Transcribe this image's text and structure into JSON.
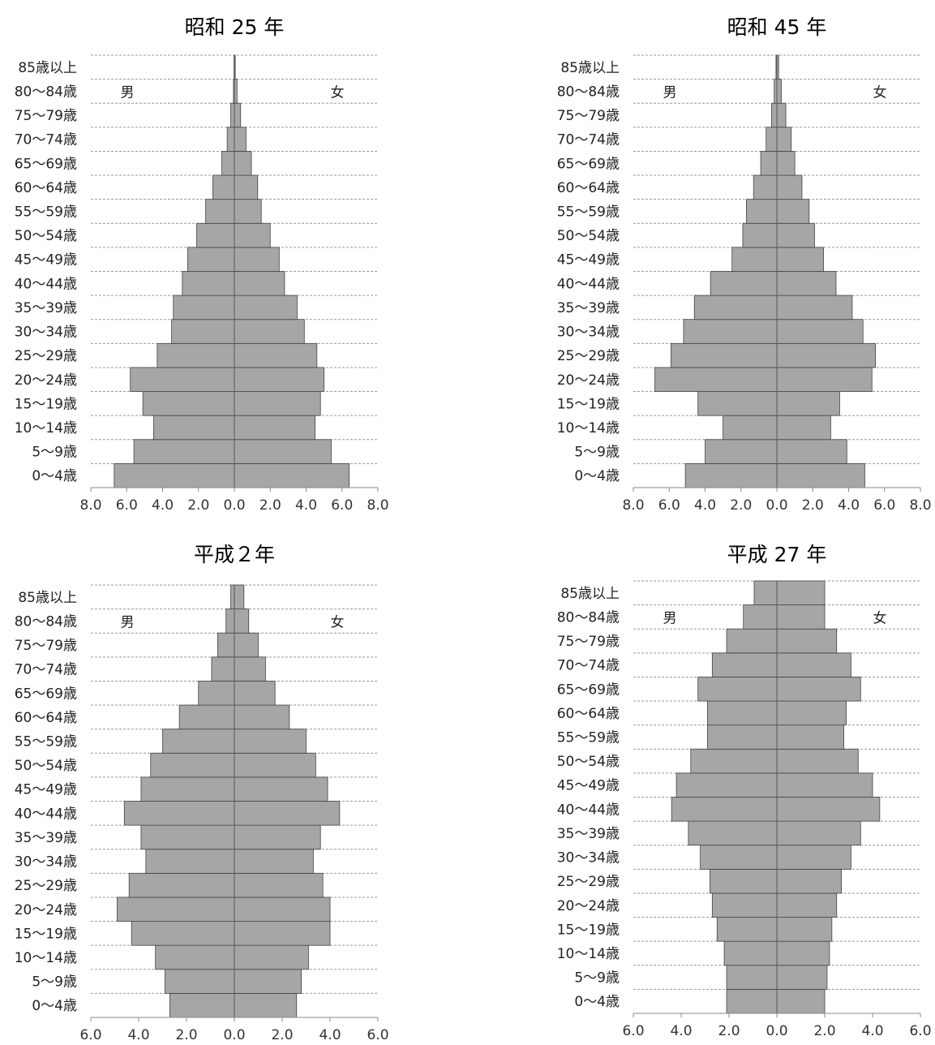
{
  "chart_data": [
    {
      "type": "bar",
      "title": "昭和 25 年",
      "categories": [
        "0～4歳",
        "5～9歳",
        "10～14歳",
        "15～19歳",
        "20～24歳",
        "25～29歳",
        "30～34歳",
        "35～39歳",
        "40～44歳",
        "45～49歳",
        "50～54歳",
        "55～59歳",
        "60～64歳",
        "65～69歳",
        "70～74歳",
        "75～79歳",
        "80～84歳",
        "85歳以上"
      ],
      "series": [
        {
          "name": "男",
          "values": [
            6.7,
            5.6,
            4.5,
            5.1,
            5.8,
            4.3,
            3.5,
            3.4,
            2.9,
            2.6,
            2.1,
            1.6,
            1.2,
            0.7,
            0.4,
            0.2,
            0.05,
            0.02
          ]
        },
        {
          "name": "女",
          "values": [
            6.4,
            5.4,
            4.5,
            4.8,
            5.0,
            4.6,
            3.9,
            3.5,
            2.8,
            2.5,
            2.0,
            1.5,
            1.3,
            0.95,
            0.65,
            0.35,
            0.15,
            0.05
          ]
        }
      ],
      "xlim": [
        -8,
        8
      ],
      "ticks": [
        "8.0",
        "6.0",
        "4.0",
        "2.0",
        "0.0",
        "2.0",
        "4.0",
        "6.0",
        "8.0"
      ],
      "male_label": "男",
      "female_label": "女"
    },
    {
      "type": "bar",
      "title": "昭和 45 年",
      "categories": [
        "0～4歳",
        "5～9歳",
        "10～14歳",
        "15～19歳",
        "20～24歳",
        "25～29歳",
        "30～34歳",
        "35～39歳",
        "40～44歳",
        "45～49歳",
        "50～54歳",
        "55～59歳",
        "60～64歳",
        "65～69歳",
        "70～74歳",
        "75～79歳",
        "80～84歳",
        "85歳以上"
      ],
      "series": [
        {
          "name": "男",
          "values": [
            5.1,
            4.0,
            3.0,
            4.4,
            6.8,
            5.9,
            5.2,
            4.6,
            3.7,
            2.5,
            1.9,
            1.7,
            1.3,
            0.9,
            0.6,
            0.3,
            0.15,
            0.05
          ]
        },
        {
          "name": "女",
          "values": [
            4.9,
            3.9,
            3.0,
            3.5,
            5.3,
            5.5,
            4.8,
            4.2,
            3.3,
            2.6,
            2.1,
            1.8,
            1.4,
            1.0,
            0.8,
            0.5,
            0.25,
            0.1
          ]
        }
      ],
      "xlim": [
        -8,
        8
      ],
      "ticks": [
        "8.0",
        "6.0",
        "4.0",
        "2.0",
        "0.0",
        "2.0",
        "4.0",
        "6.0",
        "8.0"
      ],
      "male_label": "男",
      "female_label": "女"
    },
    {
      "type": "bar",
      "title": "平成２年",
      "categories": [
        "0～4歳",
        "5～9歳",
        "10～14歳",
        "15～19歳",
        "20～24歳",
        "25～29歳",
        "30～34歳",
        "35～39歳",
        "40～44歳",
        "45～49歳",
        "50～54歳",
        "55～59歳",
        "60～64歳",
        "65～69歳",
        "70～74歳",
        "75～79歳",
        "80～84歳",
        "85歳以上"
      ],
      "series": [
        {
          "name": "男",
          "values": [
            2.7,
            2.9,
            3.3,
            4.3,
            4.9,
            4.4,
            3.7,
            3.9,
            4.6,
            3.9,
            3.5,
            3.0,
            2.3,
            1.5,
            0.95,
            0.7,
            0.35,
            0.15
          ]
        },
        {
          "name": "女",
          "values": [
            2.6,
            2.8,
            3.1,
            4.0,
            4.0,
            3.7,
            3.3,
            3.6,
            4.4,
            3.9,
            3.4,
            3.0,
            2.3,
            1.7,
            1.3,
            1.0,
            0.6,
            0.4
          ]
        }
      ],
      "xlim": [
        -6,
        6
      ],
      "ticks": [
        "6.0",
        "4.0",
        "2.0",
        "0.0",
        "2.0",
        "4.0",
        "6.0"
      ],
      "male_label": "男",
      "female_label": "女"
    },
    {
      "type": "bar",
      "title": "平成 27 年",
      "categories": [
        "0～4歳",
        "5～9歳",
        "10～14歳",
        "15～19歳",
        "20～24歳",
        "25～29歳",
        "30～34歳",
        "35～39歳",
        "40～44歳",
        "45～49歳",
        "50～54歳",
        "55～59歳",
        "60～64歳",
        "65～69歳",
        "70～74歳",
        "75～79歳",
        "80～84歳",
        "85歳以上"
      ],
      "series": [
        {
          "name": "男",
          "values": [
            2.1,
            2.1,
            2.2,
            2.5,
            2.7,
            2.8,
            3.2,
            3.7,
            4.4,
            4.2,
            3.6,
            2.9,
            2.9,
            3.3,
            2.7,
            2.1,
            1.4,
            0.95
          ]
        },
        {
          "name": "女",
          "values": [
            2.0,
            2.1,
            2.2,
            2.3,
            2.5,
            2.7,
            3.1,
            3.5,
            4.3,
            4.0,
            3.4,
            2.8,
            2.9,
            3.5,
            3.1,
            2.5,
            2.0,
            2.0
          ]
        }
      ],
      "xlim": [
        -6,
        6
      ],
      "ticks": [
        "6.0",
        "4.0",
        "2.0",
        "0.0",
        "2.0",
        "4.0",
        "6.0"
      ],
      "male_label": "男",
      "female_label": "女"
    }
  ]
}
